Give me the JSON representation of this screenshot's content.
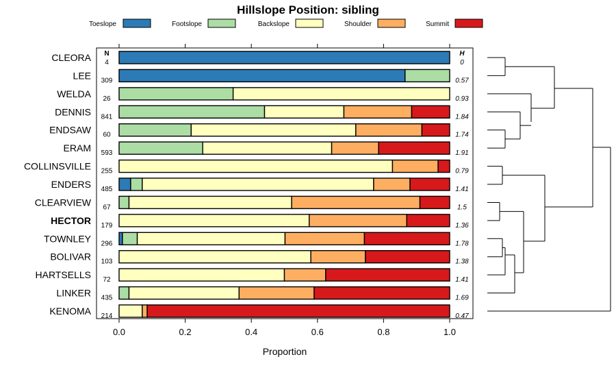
{
  "chart_data": {
    "type": "bar",
    "orientation": "horizontal-stacked",
    "title": "Hillslope Position: sibling",
    "xlabel": "Proportion",
    "xlim": [
      0,
      1
    ],
    "xticks": [
      "0.0",
      "0.2",
      "0.4",
      "0.6",
      "0.8",
      "1.0"
    ],
    "n_header": "N",
    "h_header": "H",
    "categories": [
      "CLEORA",
      "LEE",
      "WELDA",
      "DENNIS",
      "ENDSAW",
      "ERAM",
      "COLLINSVILLE",
      "ENDERS",
      "CLEARVIEW",
      "HECTOR",
      "TOWNLEY",
      "BOLIVAR",
      "HARTSELLS",
      "LINKER",
      "KENOMA"
    ],
    "highlight": "HECTOR",
    "n": [
      "4",
      "309",
      "26",
      "841",
      "60",
      "593",
      "255",
      "485",
      "67",
      "179",
      "296",
      "103",
      "72",
      "435",
      "214"
    ],
    "h": [
      "0",
      "0.57",
      "0.93",
      "1.84",
      "1.74",
      "1.91",
      "0.79",
      "1.41",
      "1.5",
      "1.36",
      "1.78",
      "1.38",
      "1.41",
      "1.69",
      "0.47"
    ],
    "series": [
      {
        "name": "Toeslope",
        "color": "#2c7bb6",
        "values": [
          1.0,
          0.865,
          0,
          0,
          0,
          0,
          0,
          0.035,
          0,
          0,
          0.01,
          0,
          0,
          0,
          0
        ]
      },
      {
        "name": "Footslope",
        "color": "#abdda4",
        "values": [
          0,
          0.135,
          0.345,
          0.44,
          0.218,
          0.253,
          0,
          0.035,
          0.03,
          0,
          0.045,
          0,
          0,
          0.03,
          0
        ]
      },
      {
        "name": "Backslope",
        "color": "#ffffbf",
        "values": [
          0,
          0,
          0.655,
          0.24,
          0.498,
          0.39,
          0.827,
          0.7,
          0.492,
          0.575,
          0.447,
          0.58,
          0.5,
          0.333,
          0.07
        ]
      },
      {
        "name": "Shoulder",
        "color": "#fdae61",
        "values": [
          0,
          0,
          0,
          0.205,
          0.2,
          0.142,
          0.138,
          0.11,
          0.388,
          0.295,
          0.24,
          0.165,
          0.125,
          0.227,
          0.015
        ]
      },
      {
        "name": "Summit",
        "color": "#d7191c",
        "values": [
          0,
          0,
          0,
          0.115,
          0.084,
          0.215,
          0.035,
          0.12,
          0.09,
          0.13,
          0.258,
          0.255,
          0.375,
          0.41,
          0.915
        ]
      }
    ]
  }
}
